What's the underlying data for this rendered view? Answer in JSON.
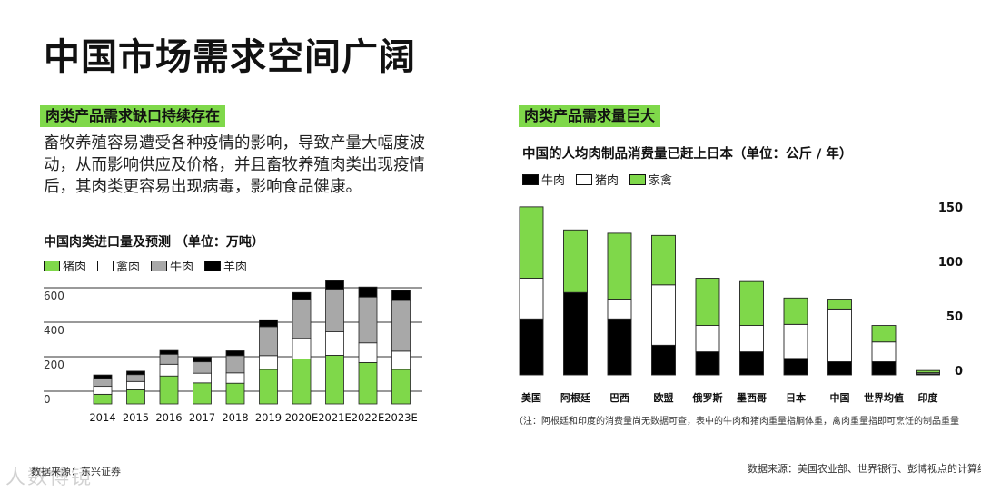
{
  "page": {
    "title": "中国市场需求空间广阔",
    "left_heading": "肉类产品需求缺口持续存在",
    "left_paragraph": "畜牧养殖容易遭受各种疫情的影响，导致产量大幅度波动，从而影响供应及价格，并且畜牧养殖肉类出现疫情后，其肉类更容易出现病毒，影响食品健康。",
    "right_heading": "肉类产品需求量巨大",
    "left_source": "数据来源：东兴证券",
    "right_source": "数据来源：美国农业部、世界银行、彭博视点的计算结",
    "right_note": "（注：阿根廷和印度的消费量尚无数据可查，表中的牛肉和猪肉重量指胴体重，禽肉重量指即可烹饪的制品重量",
    "watermark": "人数博镜"
  },
  "colors": {
    "green": "#7fd84a",
    "white": "#ffffff",
    "gray": "#a8a8a8",
    "black": "#000000",
    "stroke": "#222222"
  },
  "chart_data": [
    {
      "type": "bar",
      "stacked": true,
      "title": "中国肉类进口量及预测  （单位：万吨）",
      "categories": [
        "2014",
        "2015",
        "2016",
        "2017",
        "2018",
        "2019",
        "2020E",
        "2021E",
        "2022E",
        "2023E"
      ],
      "series": [
        {
          "name": "猪肉",
          "color": "#7fd84a",
          "values": [
            56,
            82,
            162,
            122,
            120,
            200,
            260,
            282,
            240,
            200
          ]
        },
        {
          "name": "禽肉",
          "color": "#ffffff",
          "values": [
            46,
            48,
            68,
            56,
            60,
            80,
            120,
            136,
            114,
            106
          ]
        },
        {
          "name": "牛肉",
          "color": "#a8a8a8",
          "values": [
            46,
            40,
            58,
            66,
            100,
            168,
            226,
            248,
            266,
            294
          ]
        },
        {
          "name": "羊肉",
          "color": "#000000",
          "values": [
            20,
            20,
            22,
            26,
            28,
            40,
            40,
            48,
            58,
            58
          ]
        }
      ],
      "yticks": [
        0,
        200,
        400,
        600
      ],
      "ylim": [
        0,
        700
      ],
      "grid": true
    },
    {
      "type": "bar",
      "stacked": true,
      "title": "中国的人均肉制品消费量已赶上日本（单位：公斤 / 年）",
      "categories": [
        "美国",
        "阿根廷",
        "巴西",
        "欧盟",
        "俄罗斯",
        "墨西哥",
        "日本",
        "中国",
        "世界均值",
        "印度"
      ],
      "series": [
        {
          "name": "牛肉",
          "color": "#000000",
          "values": [
            51,
            75,
            51,
            27,
            21,
            21,
            15,
            12,
            12,
            1
          ]
        },
        {
          "name": "猪肉",
          "color": "#ffffff",
          "values": [
            37,
            0,
            18,
            55,
            24,
            24,
            31,
            48,
            18,
            1
          ]
        },
        {
          "name": "家禽",
          "color": "#7fd84a",
          "values": [
            65,
            57,
            60,
            45,
            43,
            40,
            24,
            9,
            15,
            2
          ]
        }
      ],
      "yticks": [
        0,
        50,
        100,
        150
      ],
      "ylim": [
        0,
        150
      ],
      "grid": false
    }
  ]
}
